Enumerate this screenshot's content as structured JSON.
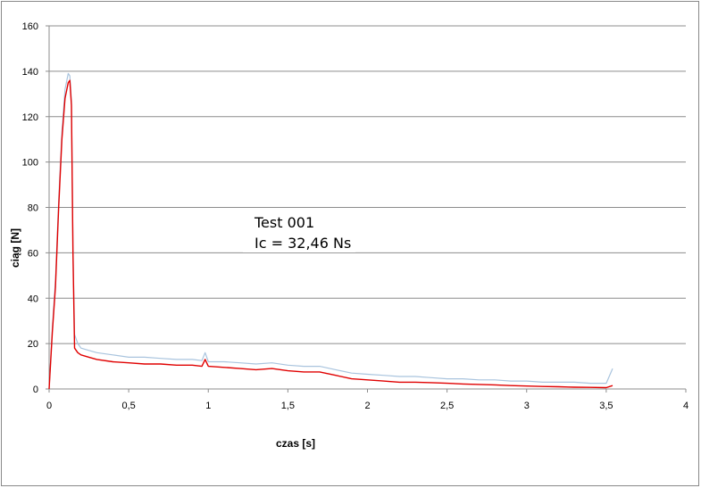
{
  "chart_data": {
    "type": "line",
    "xlabel": "czas [s]",
    "ylabel": "ciąg [N]",
    "xlim": [
      0,
      4
    ],
    "ylim": [
      0,
      160
    ],
    "x_ticks": [
      "0",
      "0,5",
      "1",
      "1,5",
      "2",
      "2,5",
      "3",
      "3,5",
      "4"
    ],
    "y_ticks": [
      "0",
      "20",
      "40",
      "60",
      "80",
      "100",
      "120",
      "140",
      "160"
    ],
    "grid": "horizontal",
    "annotation": {
      "title": "Test 001",
      "value": "Ic = 32,46 Ns"
    },
    "series": [
      {
        "color": "#e00000",
        "style": "smoothed",
        "x": [
          0,
          0.02,
          0.04,
          0.06,
          0.08,
          0.1,
          0.12,
          0.13,
          0.14,
          0.15,
          0.16,
          0.18,
          0.2,
          0.25,
          0.3,
          0.4,
          0.5,
          0.6,
          0.7,
          0.8,
          0.9,
          0.96,
          0.98,
          1.0,
          1.1,
          1.2,
          1.3,
          1.4,
          1.5,
          1.6,
          1.7,
          1.8,
          1.9,
          2.0,
          2.1,
          2.2,
          2.3,
          2.4,
          2.5,
          2.6,
          2.7,
          2.8,
          2.9,
          3.0,
          3.1,
          3.2,
          3.3,
          3.4,
          3.5,
          3.54
        ],
        "y": [
          0,
          25,
          45,
          80,
          110,
          128,
          135,
          136,
          125,
          60,
          18,
          16,
          15,
          14,
          13,
          12,
          11.5,
          11,
          11,
          10.5,
          10.5,
          10,
          13,
          10,
          9.5,
          9,
          8.5,
          9,
          8,
          7.5,
          7.5,
          6,
          4.5,
          4,
          3.5,
          3,
          3,
          2.8,
          2.5,
          2.2,
          2,
          1.8,
          1.5,
          1.3,
          1.1,
          1.0,
          0.8,
          0.7,
          0.6,
          1.5
        ]
      },
      {
        "color": "#a9c4de",
        "style": "raw",
        "x": [
          0,
          0.02,
          0.04,
          0.06,
          0.08,
          0.1,
          0.12,
          0.13,
          0.14,
          0.15,
          0.16,
          0.18,
          0.2,
          0.25,
          0.3,
          0.4,
          0.5,
          0.6,
          0.7,
          0.8,
          0.9,
          0.96,
          0.98,
          1.0,
          1.1,
          1.2,
          1.3,
          1.4,
          1.5,
          1.6,
          1.7,
          1.8,
          1.9,
          2.0,
          2.1,
          2.2,
          2.3,
          2.4,
          2.5,
          2.6,
          2.7,
          2.8,
          2.9,
          3.0,
          3.1,
          3.2,
          3.3,
          3.4,
          3.5,
          3.54
        ],
        "y": [
          0,
          27,
          48,
          83,
          113,
          132,
          139,
          138,
          127,
          63,
          24,
          20,
          18,
          17,
          16,
          15,
          14,
          14,
          13.5,
          13,
          13,
          12.5,
          16,
          12,
          12,
          11.5,
          11,
          11.5,
          10.5,
          10,
          10,
          8.5,
          7,
          6.5,
          6,
          5.5,
          5.5,
          5,
          4.5,
          4.5,
          4,
          4,
          3.5,
          3.5,
          3,
          3,
          3,
          2.5,
          2.5,
          9
        ]
      }
    ]
  }
}
